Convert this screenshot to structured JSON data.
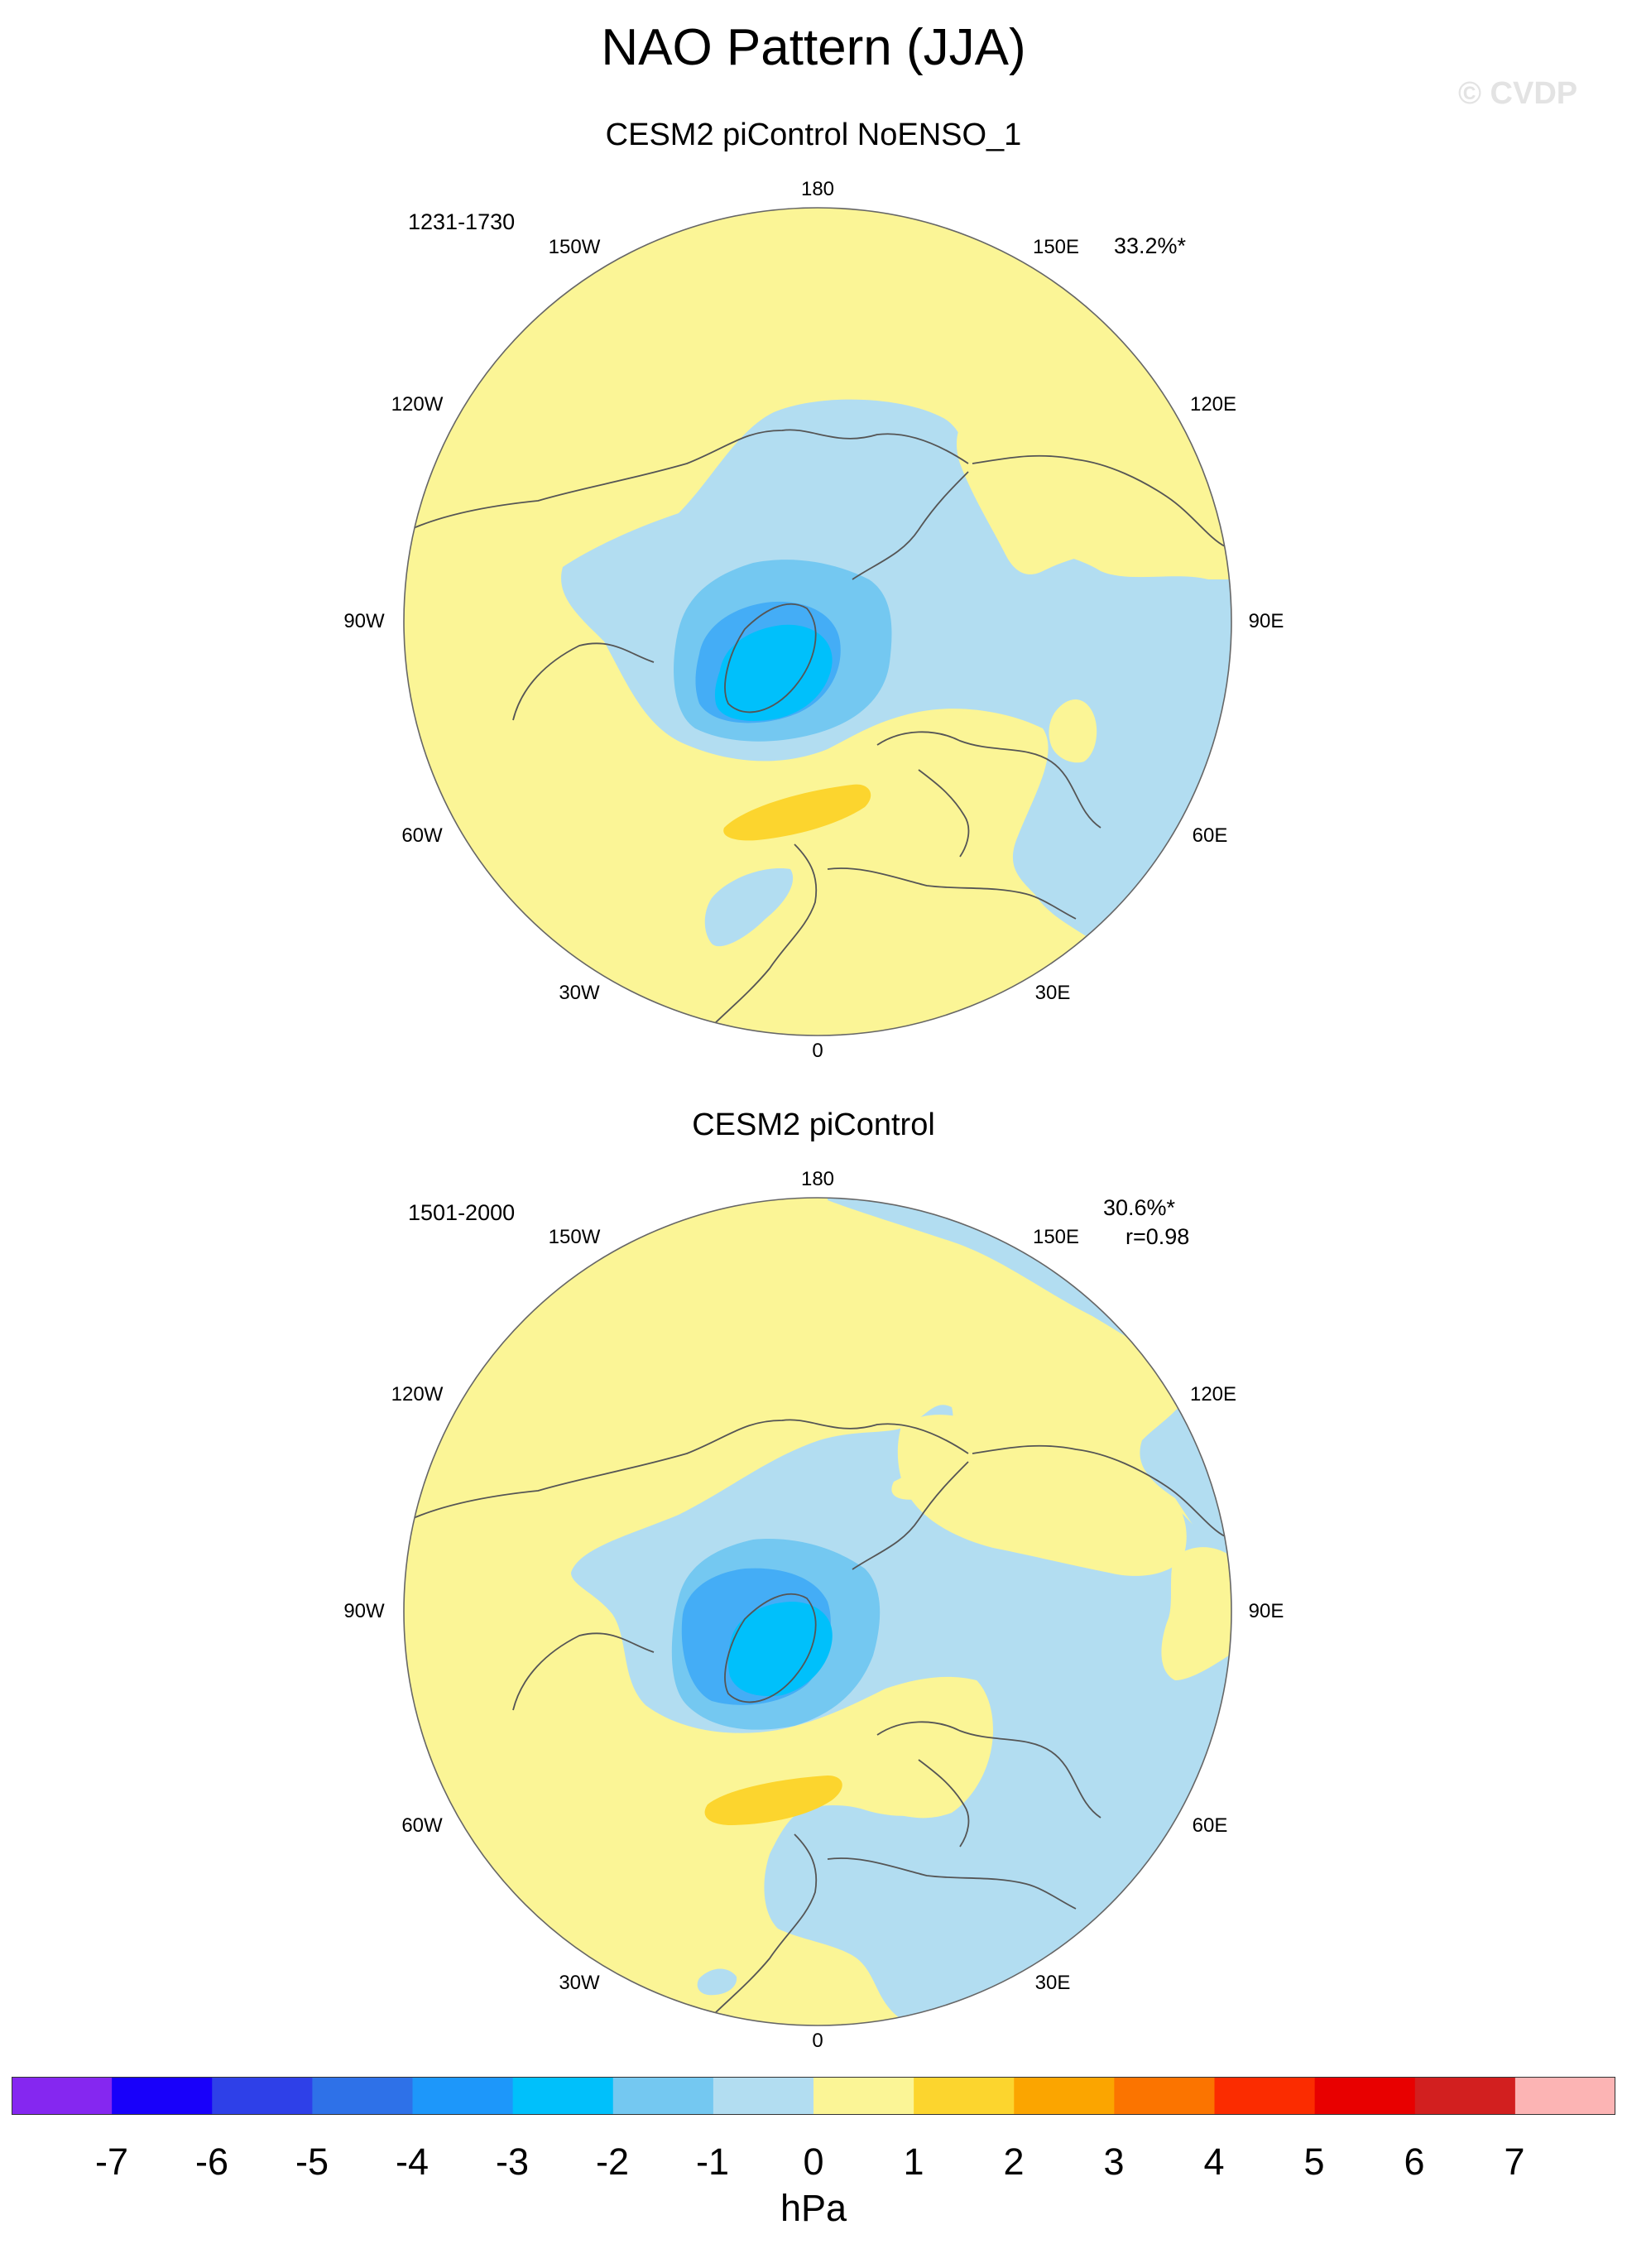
{
  "title": "NAO Pattern (JJA)",
  "watermark": "© CVDP",
  "colors": {
    "ocean_bg": "#fbf596",
    "level_colors": [
      "#8527f0",
      "#1800fa",
      "#2e40e8",
      "#2e71e8",
      "#1d97fa",
      "#00c0fb",
      "#74c8f1",
      "#b2ddf1",
      "#fbf596",
      "#fcd52e",
      "#fba500",
      "#fb7400",
      "#fb2c00",
      "#e80000",
      "#d21f1f",
      "#fcb4b4"
    ]
  },
  "panels": [
    {
      "id": "noenso",
      "title": "CESM2 piControl NoENSO_1",
      "years": "1231-1730",
      "percent": "33.2%*",
      "correlation": "",
      "lon_labels": [
        "180",
        "150E",
        "120E",
        "90E",
        "60E",
        "30E",
        "0",
        "30W",
        "60W",
        "90W",
        "120W",
        "150W"
      ]
    },
    {
      "id": "picontrol",
      "title": "CESM2 piControl",
      "years": "1501-2000",
      "percent": "30.6%*",
      "correlation": "r=0.98",
      "lon_labels": [
        "180",
        "150E",
        "120E",
        "90E",
        "60E",
        "30E",
        "0",
        "30W",
        "60W",
        "90W",
        "120W",
        "150W"
      ]
    }
  ],
  "colorbar": {
    "labels": [
      "-7",
      "-6",
      "-5",
      "-4",
      "-3",
      "-2",
      "-1",
      "0",
      "1",
      "2",
      "3",
      "4",
      "5",
      "6",
      "7"
    ],
    "units": "hPa"
  }
}
